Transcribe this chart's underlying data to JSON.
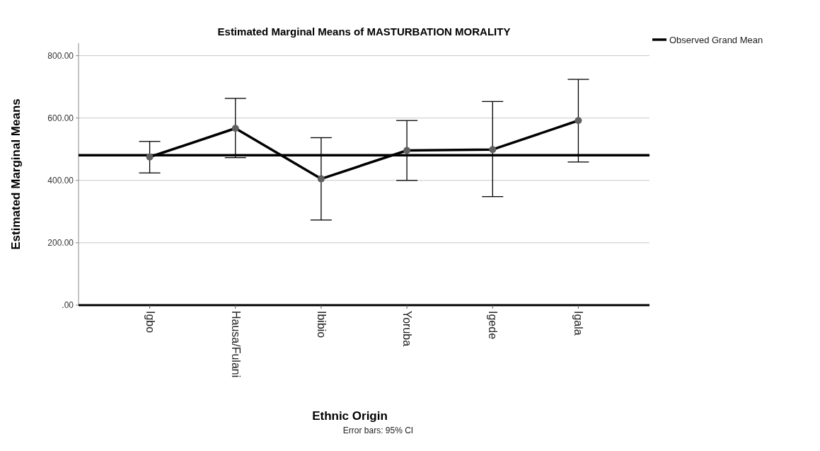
{
  "chart_data": {
    "type": "line",
    "title": "Estimated Marginal Means of MASTURBATION MORALITY",
    "xlabel": "Ethnic Origin",
    "ylabel": "Estimated Marginal Means",
    "categories": [
      "Igbo",
      "Hausa/Fulani",
      "Ibibio",
      "Yoruba",
      "Igede",
      "Igala"
    ],
    "series": [
      {
        "color": "#000000",
        "values": [
          475,
          567,
          405,
          496,
          499,
          592
        ],
        "errors": [
          [
            424,
            525
          ],
          [
            473,
            663
          ],
          [
            273,
            537
          ],
          [
            400,
            592
          ],
          [
            348,
            653
          ],
          [
            459,
            724
          ]
        ]
      }
    ],
    "ylim": [
      0,
      840
    ],
    "yticks": [
      {
        "value": 0,
        "label": ".00"
      },
      {
        "value": 200,
        "label": "200.00"
      },
      {
        "value": 400,
        "label": "400.00"
      },
      {
        "value": 600,
        "label": "600.00"
      },
      {
        "value": 800,
        "label": "800.00"
      }
    ],
    "grid": "y",
    "marker": "circle",
    "legend": "top right",
    "ref_lines": [
      {
        "axis": "y",
        "value": 481,
        "label": "Observed Grand Mean",
        "color": "#000000"
      }
    ],
    "annotations": [
      "Error bars: 95% CI"
    ]
  }
}
